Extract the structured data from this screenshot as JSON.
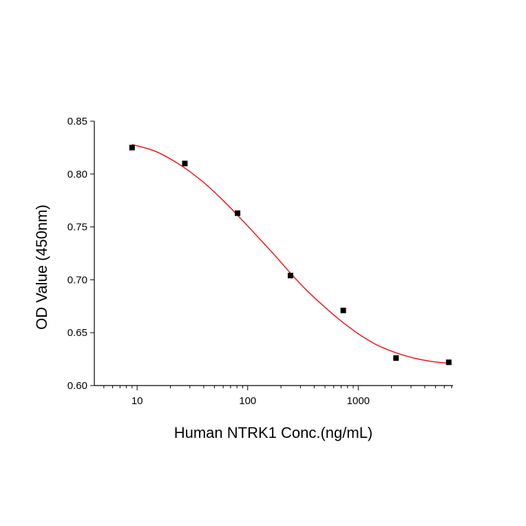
{
  "chart_data": {
    "type": "scatter",
    "title": "",
    "xlabel": "Human NTRK1 Conc.(ng/mL)",
    "ylabel": "OD Value (450nm)",
    "x_scale": "log",
    "xlim": [
      4.1,
      7200
    ],
    "ylim": [
      0.6,
      0.85
    ],
    "x_ticks": [
      10,
      100,
      1000
    ],
    "x_tick_labels": [
      "10",
      "100",
      "1000"
    ],
    "y_ticks": [
      0.6,
      0.65,
      0.7,
      0.75,
      0.8,
      0.85
    ],
    "y_tick_labels": [
      "0.60",
      "0.65",
      "0.70",
      "0.75",
      "0.80",
      "0.85"
    ],
    "grid": false,
    "series": [
      {
        "type": "scatter",
        "marker": "square",
        "color": "#000000",
        "x": [
          9.0,
          27.0,
          81.0,
          244.0,
          732.0,
          2197.0,
          6590.0
        ],
        "y": [
          0.825,
          0.81,
          0.763,
          0.704,
          0.671,
          0.626,
          0.622
        ]
      },
      {
        "type": "line",
        "style": "fit",
        "color": "#e8191c",
        "x": [
          9.0,
          15,
          25,
          40,
          60,
          90,
          130,
          180,
          250,
          350,
          500,
          700,
          1000,
          1500,
          2200,
          3200,
          4500,
          6600
        ],
        "y": [
          0.828,
          0.821,
          0.808,
          0.792,
          0.775,
          0.756,
          0.738,
          0.722,
          0.705,
          0.689,
          0.674,
          0.661,
          0.649,
          0.638,
          0.631,
          0.626,
          0.623,
          0.621
        ]
      }
    ]
  }
}
